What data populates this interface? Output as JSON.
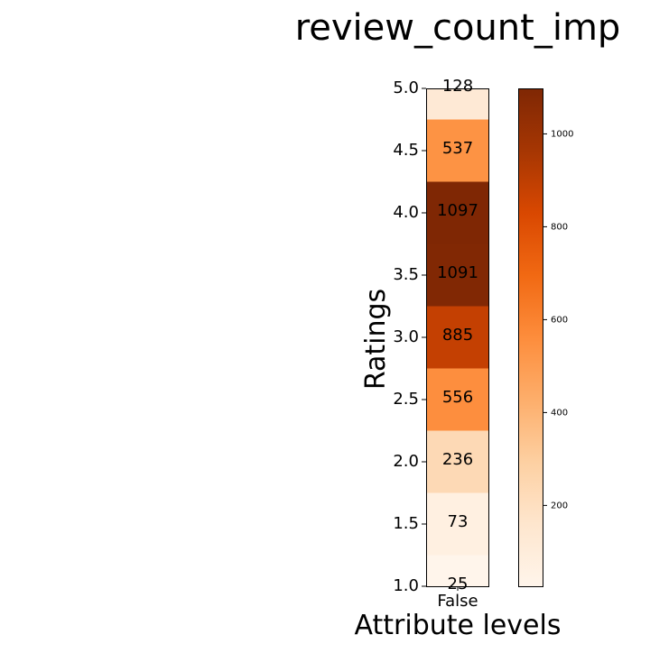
{
  "chart_data": {
    "type": "heatmap",
    "title": "review_count_imp",
    "xlabel": "Attribute levels",
    "ylabel": "Ratings",
    "x_categories": [
      "False"
    ],
    "yticks": [
      "1.0",
      "1.5",
      "2.0",
      "2.5",
      "3.0",
      "3.5",
      "4.0",
      "4.5",
      "5.0"
    ],
    "ylim": [
      1.0,
      5.0
    ],
    "cells": [
      {
        "x": "False",
        "y_from": 1.0,
        "y_to": 1.0,
        "value": 25
      },
      {
        "x": "False",
        "y_from": 1.0,
        "y_to": 1.5,
        "value": 73
      },
      {
        "x": "False",
        "y_from": 1.5,
        "y_to": 2.0,
        "value": 236
      },
      {
        "x": "False",
        "y_from": 2.0,
        "y_to": 2.5,
        "value": 556
      },
      {
        "x": "False",
        "y_from": 2.5,
        "y_to": 3.0,
        "value": 885
      },
      {
        "x": "False",
        "y_from": 3.0,
        "y_to": 3.5,
        "value": 1091
      },
      {
        "x": "False",
        "y_from": 3.5,
        "y_to": 4.0,
        "value": 1097
      },
      {
        "x": "False",
        "y_from": 4.0,
        "y_to": 4.5,
        "value": 537
      },
      {
        "x": "False",
        "y_from": 4.5,
        "y_to": 5.0,
        "value": 128
      }
    ],
    "colormap": "Oranges",
    "colorbar": {
      "ticks": [
        200,
        400,
        600,
        800,
        1000
      ],
      "tick_labels": [
        "200",
        "400",
        "600",
        "800",
        "1000"
      ],
      "range": [
        25,
        1097
      ]
    },
    "grid": false,
    "legend": "colorbar-right"
  }
}
